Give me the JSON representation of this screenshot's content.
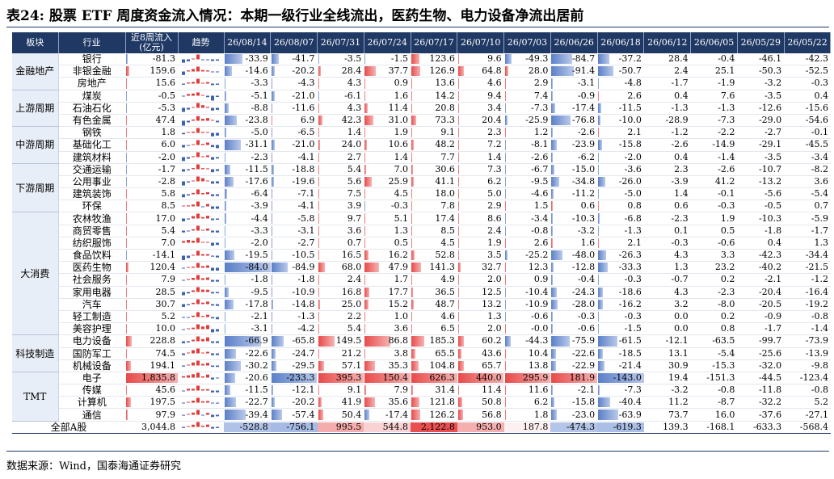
{
  "title": "表24: 股票 ETF 周度资金流入情况：本期一级行业全线流出，医药生物、电力设备净流出居前",
  "table": {
    "headers": [
      "板块",
      "行业",
      "近8周流入\n(亿元)",
      "趋势",
      "26/08/14",
      "26/08/07",
      "26/07/31",
      "26/07/24",
      "26/07/17",
      "26/07/10",
      "26/07/03",
      "26/06/26",
      "26/06/18",
      "26/06/12",
      "26/06/05",
      "26/05/29",
      "26/05/22"
    ],
    "groups": [
      {
        "name": "金融地产",
        "rows": [
          {
            "industry": "银行",
            "total": "-81.3",
            "values": [
              "-33.9",
              "-41.7",
              "-3.5",
              "-1.5",
              "123.6",
              "9.6",
              "-49.3",
              "-84.7",
              "-37.2",
              "28.4",
              "-0.4",
              "-46.1",
              "-42.3"
            ]
          },
          {
            "industry": "非银金融",
            "total": "159.6",
            "values": [
              "-14.6",
              "-20.2",
              "28.4",
              "37.7",
              "126.9",
              "64.8",
              "28.0",
              "-91.4",
              "-50.7",
              "2.4",
              "25.1",
              "-50.3",
              "-52.5"
            ]
          },
          {
            "industry": "房地产",
            "total": "15.6",
            "values": [
              "-3.3",
              "-4.3",
              "4.3",
              "0.9",
              "13.6",
              "4.6",
              "2.9",
              "-3.1",
              "-4.8",
              "-1.7",
              "-1.9",
              "-3.2",
              "-0.3"
            ]
          }
        ]
      },
      {
        "name": "上游周期",
        "rows": [
          {
            "industry": "煤炭",
            "total": "-0.5",
            "values": [
              "-5.1",
              "-21.0",
              "-6.1",
              "1.6",
              "14.2",
              "9.4",
              "7.4",
              "-0.9",
              "2.6",
              "0.4",
              "7.6",
              "-3.5",
              "0.4"
            ]
          },
          {
            "industry": "石油石化",
            "total": "-5.3",
            "values": [
              "-8.8",
              "-11.6",
              "4.3",
              "11.4",
              "20.8",
              "3.4",
              "-7.3",
              "-17.4",
              "-11.5",
              "-1.3",
              "-1.3",
              "-12.6",
              "-15.6"
            ]
          },
          {
            "industry": "有色金属",
            "total": "47.4",
            "values": [
              "-23.8",
              "6.9",
              "42.3",
              "31.0",
              "73.3",
              "20.4",
              "-25.9",
              "-76.8",
              "-10.0",
              "-28.9",
              "-7.3",
              "-29.0",
              "-54.6"
            ]
          }
        ]
      },
      {
        "name": "中游周期",
        "rows": [
          {
            "industry": "钢铁",
            "total": "1.8",
            "values": [
              "-5.0",
              "-6.5",
              "1.4",
              "1.9",
              "9.1",
              "2.3",
              "1.2",
              "-2.6",
              "2.1",
              "-1.2",
              "-2.2",
              "-2.7",
              "-0.1"
            ]
          },
          {
            "industry": "基础化工",
            "total": "6.0",
            "values": [
              "-31.1",
              "-21.0",
              "24.0",
              "10.6",
              "48.2",
              "7.2",
              "-8.1",
              "-23.9",
              "-15.8",
              "-2.6",
              "-14.9",
              "-29.1",
              "-45.5"
            ]
          },
          {
            "industry": "建筑材料",
            "total": "-2.0",
            "values": [
              "-2.3",
              "-4.1",
              "2.7",
              "1.4",
              "7.7",
              "1.4",
              "-2.6",
              "-6.2",
              "-2.0",
              "0.4",
              "-1.4",
              "-3.5",
              "-3.4"
            ]
          }
        ]
      },
      {
        "name": "下游周期",
        "rows": [
          {
            "industry": "交通运输",
            "total": "-1.7",
            "values": [
              "-11.5",
              "-18.8",
              "5.4",
              "7.0",
              "30.6",
              "7.3",
              "-6.7",
              "-15.0",
              "-3.6",
              "2.3",
              "-2.6",
              "-10.7",
              "-8.2"
            ]
          },
          {
            "industry": "公用事业",
            "total": "-2.8",
            "values": [
              "-17.6",
              "-19.6",
              "5.6",
              "25.9",
              "41.1",
              "6.2",
              "-9.5",
              "-34.8",
              "-26.0",
              "-3.9",
              "41.2",
              "-13.2",
              "3.6"
            ]
          },
          {
            "industry": "建筑装饰",
            "total": "5.8",
            "values": [
              "-6.4",
              "-7.1",
              "7.5",
              "4.5",
              "18.0",
              "5.0",
              "-4.6",
              "-11.2",
              "-5.0",
              "1.4",
              "-0.1",
              "-5.6",
              "-5.4"
            ]
          },
          {
            "industry": "环保",
            "total": "8.5",
            "values": [
              "-3.9",
              "-4.1",
              "3.9",
              "-0.3",
              "7.8",
              "2.9",
              "1.5",
              "0.6",
              "0.8",
              "0.6",
              "-0.3",
              "-0.5",
              "0.7"
            ]
          }
        ]
      },
      {
        "name": "大消费",
        "rows": [
          {
            "industry": "农林牧渔",
            "total": "17.0",
            "values": [
              "-4.4",
              "-5.8",
              "9.7",
              "5.1",
              "17.4",
              "8.6",
              "-3.4",
              "-10.3",
              "-6.8",
              "-2.3",
              "1.9",
              "-10.3",
              "-5.9"
            ]
          },
          {
            "industry": "商贸零售",
            "total": "5.4",
            "values": [
              "-3.3",
              "-3.1",
              "3.6",
              "1.3",
              "8.5",
              "2.4",
              "-0.8",
              "-3.2",
              "-1.3",
              "0.1",
              "0.5",
              "-1.8",
              "-1.7"
            ]
          },
          {
            "industry": "纺织服饰",
            "total": "7.0",
            "values": [
              "-2.0",
              "-2.7",
              "0.7",
              "0.5",
              "4.5",
              "1.9",
              "2.6",
              "1.6",
              "2.1",
              "-0.3",
              "-0.6",
              "0.4",
              "1.3"
            ]
          },
          {
            "industry": "食品饮料",
            "total": "-14.1",
            "values": [
              "-19.5",
              "-10.5",
              "16.5",
              "16.2",
              "52.8",
              "3.5",
              "-25.2",
              "-48.0",
              "-26.3",
              "4.3",
              "3.3",
              "-42.3",
              "-34.4"
            ]
          },
          {
            "industry": "医药生物",
            "total": "120.4",
            "values": [
              "-84.0",
              "-84.9",
              "68.0",
              "47.9",
              "141.3",
              "32.7",
              "12.3",
              "-12.8",
              "-33.3",
              "1.3",
              "23.2",
              "-40.2",
              "-21.5"
            ]
          },
          {
            "industry": "社会服务",
            "total": "7.9",
            "values": [
              "-1.8",
              "-1.8",
              "2.4",
              "1.7",
              "4.9",
              "2.0",
              "0.9",
              "-0.4",
              "-0.3",
              "-0.7",
              "0.2",
              "-2.1",
              "-1.2"
            ]
          },
          {
            "industry": "家用电器",
            "total": "28.5",
            "values": [
              "-9.5",
              "-10.9",
              "16.8",
              "17.7",
              "36.5",
              "12.5",
              "-10.4",
              "-24.3",
              "-18.6",
              "4.3",
              "-2.3",
              "-20.4",
              "-16.4"
            ]
          },
          {
            "industry": "汽车",
            "total": "30.7",
            "values": [
              "-17.8",
              "-14.8",
              "25.0",
              "15.2",
              "48.7",
              "13.2",
              "-10.9",
              "-28.0",
              "-16.2",
              "3.2",
              "-8.0",
              "-20.5",
              "-19.2"
            ]
          },
          {
            "industry": "轻工制造",
            "total": "5.2",
            "values": [
              "-2.1",
              "-1.3",
              "2.2",
              "1.0",
              "4.6",
              "1.3",
              "-0.6",
              "-0.3",
              "-0.3",
              "0.0",
              "0.2",
              "-0.9",
              "-0.8"
            ]
          },
          {
            "industry": "美容护理",
            "total": "10.0",
            "values": [
              "-3.1",
              "-4.2",
              "5.4",
              "3.6",
              "6.5",
              "2.0",
              "-0.0",
              "-0.6",
              "-1.5",
              "0.0",
              "0.8",
              "-1.7",
              "-1.4"
            ]
          }
        ]
      },
      {
        "name": "科技制造",
        "rows": [
          {
            "industry": "电力设备",
            "total": "228.8",
            "values": [
              "-66.9",
              "-65.8",
              "149.5",
              "86.8",
              "185.3",
              "60.2",
              "-44.3",
              "-75.9",
              "-61.5",
              "-12.1",
              "-63.5",
              "-99.7",
              "-73.9"
            ]
          },
          {
            "industry": "国防军工",
            "total": "74.5",
            "values": [
              "-22.6",
              "-24.7",
              "21.2",
              "3.8",
              "65.5",
              "43.6",
              "10.4",
              "-22.6",
              "-18.5",
              "13.1",
              "-5.4",
              "-25.6",
              "-13.9"
            ]
          },
          {
            "industry": "机械设备",
            "total": "194.1",
            "values": [
              "-30.2",
              "-29.5",
              "57.1",
              "35.3",
              "104.8",
              "65.7",
              "13.8",
              "-22.9",
              "-21.4",
              "30.9",
              "-15.3",
              "-32.0",
              "-9.8"
            ]
          }
        ]
      },
      {
        "name": "TMT",
        "rows": [
          {
            "industry": "电子",
            "total": "1,835.8",
            "values": [
              "-20.6",
              "-233.3",
              "395.3",
              "150.4",
              "626.3",
              "440.0",
              "295.9",
              "181.9",
              "-143.0",
              "19.4",
              "-151.3",
              "-44.5",
              "-123.4"
            ]
          },
          {
            "industry": "传媒",
            "total": "45.6",
            "values": [
              "-11.5",
              "-12.1",
              "9.1",
              "7.9",
              "31.4",
              "11.4",
              "11.6",
              "-2.1",
              "-7.3",
              "-3.2",
              "-0.8",
              "-11.8",
              "-0.8"
            ]
          },
          {
            "industry": "计算机",
            "total": "197.5",
            "values": [
              "-22.7",
              "-20.2",
              "41.9",
              "35.6",
              "121.8",
              "50.8",
              "6.2",
              "-15.8",
              "-40.4",
              "11.2",
              "-8.7",
              "-32.2",
              "5.2"
            ]
          },
          {
            "industry": "通信",
            "total": "97.9",
            "values": [
              "-39.4",
              "-57.4",
              "50.4",
              "-17.4",
              "126.2",
              "56.8",
              "1.8",
              "-23.0",
              "-63.9",
              "73.7",
              "16.0",
              "-37.6",
              "-27.1"
            ]
          }
        ]
      }
    ],
    "summary": {
      "label": "全部A股",
      "total": "3,044.8",
      "values": [
        "-528.8",
        "-756.1",
        "995.5",
        "544.8",
        "2,122.8",
        "953.0",
        "187.8",
        "-474.3",
        "-619.3",
        "139.3",
        "-168.1",
        "-633.3",
        "-568.4"
      ]
    }
  },
  "source": "数据来源：Wind，国泰海通证券研究"
}
